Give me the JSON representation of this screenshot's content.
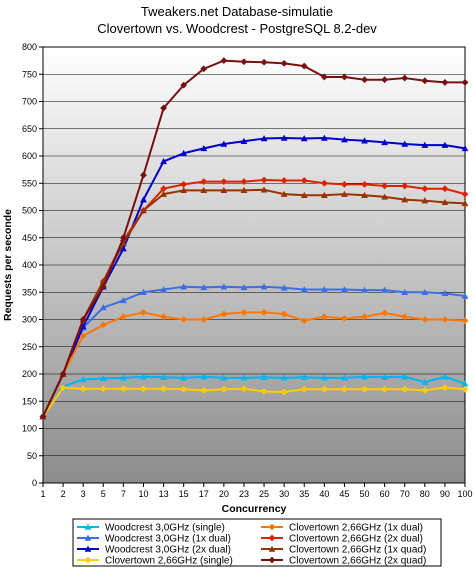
{
  "chart_data": {
    "type": "line",
    "title": "Tweakers.net Database-simulatie",
    "subtitle": "Clovertown vs. Woodcrest - PostgreSQL 8.2-dev",
    "xlabel": "Concurrency",
    "ylabel": "Requests per seconde",
    "ylim": [
      0,
      800
    ],
    "yticks": [
      0,
      50,
      100,
      150,
      200,
      250,
      300,
      350,
      400,
      450,
      500,
      550,
      600,
      650,
      700,
      750,
      800
    ],
    "grid": true,
    "background": "vertical gradient grey",
    "legend_position": "bottom",
    "x": [
      "1",
      "2",
      "3",
      "5",
      "7",
      "10",
      "13",
      "15",
      "17",
      "20",
      "23",
      "25",
      "30",
      "35",
      "40",
      "45",
      "50",
      "60",
      "70",
      "80",
      "90",
      "100"
    ],
    "series": [
      {
        "name": "Woodcrest 3,0GHz (single)",
        "color": "#00b4f0",
        "marker": "triangle",
        "values": [
          122,
          177,
          190,
          192,
          193,
          195,
          194,
          193,
          195,
          193,
          193,
          194,
          193,
          194,
          193,
          193,
          195,
          194,
          195,
          185,
          195,
          182
        ]
      },
      {
        "name": "Woodcrest 3,0GHz (1x dual)",
        "color": "#3c6ee6",
        "marker": "triangle",
        "values": [
          122,
          200,
          285,
          322,
          335,
          350,
          355,
          360,
          359,
          360,
          359,
          360,
          358,
          355,
          355,
          355,
          354,
          354,
          350,
          350,
          348,
          343
        ]
      },
      {
        "name": "Woodcrest 3,0GHz (2x dual)",
        "color": "#0000cc",
        "marker": "triangle",
        "values": [
          122,
          200,
          287,
          360,
          430,
          520,
          590,
          605,
          614,
          622,
          627,
          632,
          633,
          632,
          633,
          630,
          628,
          625,
          622,
          620,
          620,
          614
        ]
      },
      {
        "name": "Clovertown 2,66GHz (single)",
        "color": "#ffcc00",
        "marker": "diamond",
        "values": [
          122,
          175,
          173,
          173,
          173,
          173,
          173,
          172,
          170,
          172,
          173,
          168,
          167,
          172,
          172,
          172,
          172,
          172,
          172,
          170,
          175,
          172
        ]
      },
      {
        "name": "Clovertown 2,66GHz (1x dual)",
        "color": "#ff7700",
        "marker": "diamond",
        "values": [
          122,
          200,
          270,
          290,
          305,
          313,
          305,
          300,
          300,
          310,
          313,
          313,
          310,
          298,
          305,
          302,
          305,
          312,
          305,
          300,
          300,
          298
        ]
      },
      {
        "name": "Clovertown 2,66GHz (2x dual)",
        "color": "#dd2200",
        "marker": "diamond",
        "values": [
          122,
          200,
          300,
          370,
          445,
          500,
          540,
          548,
          553,
          553,
          553,
          556,
          555,
          555,
          550,
          548,
          548,
          545,
          545,
          540,
          540,
          530
        ]
      },
      {
        "name": "Clovertown 2,66GHz (1x quad)",
        "color": "#993300",
        "marker": "triangle",
        "values": [
          122,
          200,
          300,
          370,
          440,
          500,
          530,
          537,
          537,
          537,
          537,
          538,
          530,
          528,
          528,
          530,
          528,
          525,
          520,
          518,
          515,
          513
        ]
      },
      {
        "name": "Clovertown 2,66GHz (2x quad)",
        "color": "#771111",
        "marker": "diamond",
        "values": [
          122,
          200,
          300,
          360,
          450,
          565,
          688,
          730,
          760,
          775,
          773,
          772,
          770,
          765,
          745,
          745,
          740,
          740,
          743,
          738,
          735,
          735
        ]
      }
    ]
  }
}
